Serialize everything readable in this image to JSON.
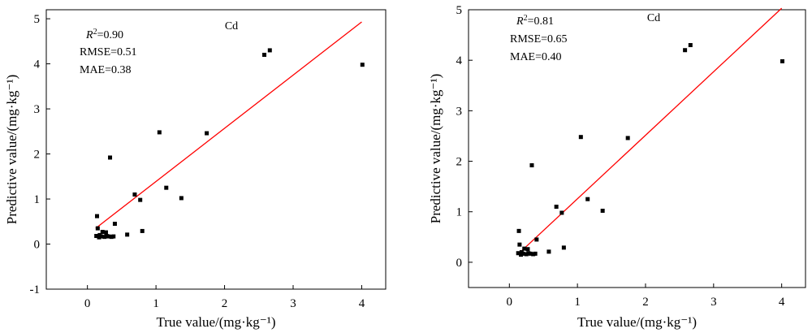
{
  "chart_data": [
    {
      "type": "scatter",
      "title": "Cd",
      "xlabel": "True value/(mg·kg⁻¹)",
      "ylabel": "Predictive value/(mg·kg⁻¹)",
      "xlim": [
        -0.6,
        4.35
      ],
      "ylim": [
        -1,
        5.2
      ],
      "xticks": [
        0,
        1,
        2,
        3,
        4
      ],
      "yticks": [
        -1,
        0,
        1,
        2,
        3,
        4,
        5
      ],
      "stats": {
        "r2_label": "R",
        "r2_value": "=0.90",
        "rmse": "RMSE=0.51",
        "mae": "MAE=0.38"
      },
      "fit_line": {
        "x": [
          0.12,
          4.0
        ],
        "y": [
          0.35,
          4.93
        ],
        "color": "#ff0000"
      },
      "points": [
        {
          "x": 0.13,
          "y": 0.18
        },
        {
          "x": 0.14,
          "y": 0.62
        },
        {
          "x": 0.15,
          "y": 0.35
        },
        {
          "x": 0.17,
          "y": 0.15
        },
        {
          "x": 0.18,
          "y": 0.2
        },
        {
          "x": 0.2,
          "y": 0.17
        },
        {
          "x": 0.22,
          "y": 0.27
        },
        {
          "x": 0.25,
          "y": 0.16
        },
        {
          "x": 0.27,
          "y": 0.26
        },
        {
          "x": 0.28,
          "y": 0.18
        },
        {
          "x": 0.31,
          "y": 0.17
        },
        {
          "x": 0.33,
          "y": 1.92
        },
        {
          "x": 0.35,
          "y": 0.16
        },
        {
          "x": 0.38,
          "y": 0.17
        },
        {
          "x": 0.4,
          "y": 0.45
        },
        {
          "x": 0.58,
          "y": 0.21
        },
        {
          "x": 0.69,
          "y": 1.1
        },
        {
          "x": 0.77,
          "y": 0.98
        },
        {
          "x": 0.8,
          "y": 0.29
        },
        {
          "x": 1.05,
          "y": 2.48
        },
        {
          "x": 1.15,
          "y": 1.25
        },
        {
          "x": 1.37,
          "y": 1.02
        },
        {
          "x": 1.74,
          "y": 2.46
        },
        {
          "x": 2.58,
          "y": 4.2
        },
        {
          "x": 2.66,
          "y": 4.3
        },
        {
          "x": 4.01,
          "y": 3.98
        }
      ]
    },
    {
      "type": "scatter",
      "title": "Cd",
      "xlabel": "True value/(mg·kg⁻¹)",
      "ylabel": "Predictive value/(mg·kg⁻¹)",
      "xlim": [
        -0.6,
        4.35
      ],
      "ylim": [
        -0.5,
        5
      ],
      "xticks": [
        0,
        1,
        2,
        3,
        4
      ],
      "yticks": [
        0,
        1,
        2,
        3,
        4,
        5
      ],
      "stats": {
        "r2_label": "R",
        "r2_value": "=0.81",
        "rmse": "RMSE=0.65",
        "mae": "MAE=0.40"
      },
      "fit_line": {
        "x": [
          0.12,
          4.0
        ],
        "y": [
          0.15,
          5.03
        ],
        "color": "#ff0000"
      },
      "points": [
        {
          "x": 0.13,
          "y": 0.18
        },
        {
          "x": 0.14,
          "y": 0.62
        },
        {
          "x": 0.15,
          "y": 0.35
        },
        {
          "x": 0.17,
          "y": 0.15
        },
        {
          "x": 0.18,
          "y": 0.2
        },
        {
          "x": 0.2,
          "y": 0.17
        },
        {
          "x": 0.22,
          "y": 0.27
        },
        {
          "x": 0.25,
          "y": 0.16
        },
        {
          "x": 0.27,
          "y": 0.26
        },
        {
          "x": 0.28,
          "y": 0.18
        },
        {
          "x": 0.31,
          "y": 0.17
        },
        {
          "x": 0.33,
          "y": 1.92
        },
        {
          "x": 0.35,
          "y": 0.16
        },
        {
          "x": 0.38,
          "y": 0.17
        },
        {
          "x": 0.4,
          "y": 0.45
        },
        {
          "x": 0.58,
          "y": 0.21
        },
        {
          "x": 0.69,
          "y": 1.1
        },
        {
          "x": 0.77,
          "y": 0.98
        },
        {
          "x": 0.8,
          "y": 0.29
        },
        {
          "x": 1.05,
          "y": 2.48
        },
        {
          "x": 1.15,
          "y": 1.25
        },
        {
          "x": 1.37,
          "y": 1.02
        },
        {
          "x": 1.74,
          "y": 2.46
        },
        {
          "x": 2.58,
          "y": 4.2
        },
        {
          "x": 2.66,
          "y": 4.3
        },
        {
          "x": 4.01,
          "y": 3.98
        }
      ]
    }
  ]
}
